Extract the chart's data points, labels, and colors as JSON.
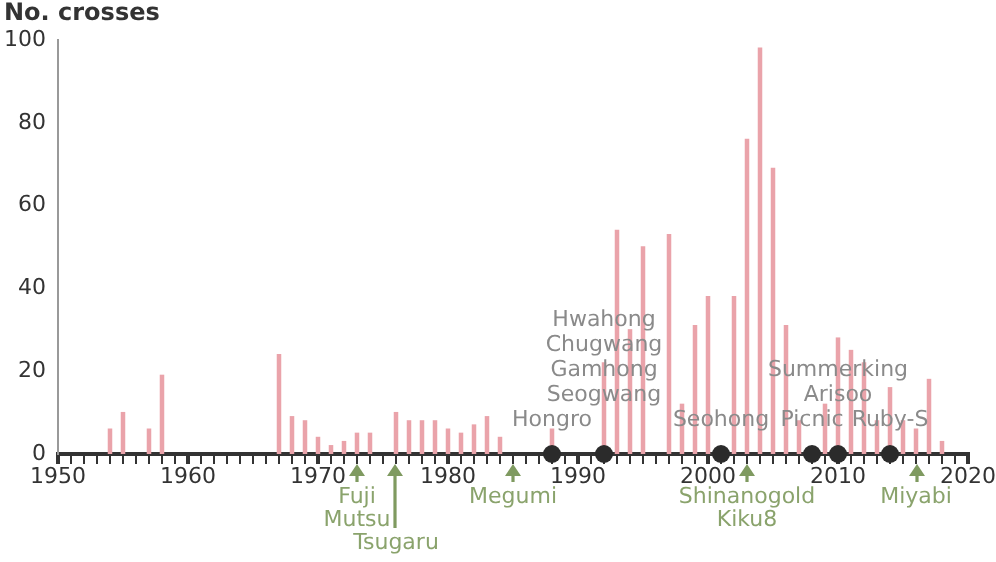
{
  "chart_data": {
    "type": "bar",
    "ylabel": "No. crosses",
    "categories": [
      "1950",
      null,
      null,
      null,
      null,
      null,
      null,
      null,
      null,
      null,
      "1960",
      null,
      null,
      null,
      null,
      null,
      null,
      null,
      null,
      null,
      "1970",
      null,
      null,
      null,
      null,
      null,
      null,
      null,
      null,
      null,
      "1980",
      null,
      null,
      null,
      null,
      null,
      null,
      null,
      null,
      null,
      "1990",
      null,
      null,
      null,
      null,
      null,
      null,
      null,
      null,
      null,
      "2000",
      null,
      null,
      null,
      null,
      null,
      null,
      null,
      null,
      null,
      "2010",
      null,
      null,
      null,
      null,
      null,
      null,
      null,
      null,
      null,
      "2020"
    ],
    "ylim": [
      0,
      100
    ],
    "yticks": [
      0,
      20,
      40,
      60,
      80,
      100
    ],
    "series": [
      {
        "color": "#eaa3aa",
        "values": [
          null,
          null,
          null,
          null,
          6,
          10,
          null,
          6,
          19,
          null,
          null,
          null,
          null,
          null,
          null,
          null,
          null,
          24,
          9,
          8,
          4,
          2,
          3,
          5,
          5,
          null,
          10,
          8,
          8,
          8,
          6,
          5,
          7,
          9,
          4,
          null,
          null,
          null,
          6,
          null,
          null,
          null,
          22,
          54,
          30,
          50,
          null,
          53,
          12,
          31,
          38,
          null,
          38,
          76,
          98,
          69,
          31,
          8,
          null,
          12,
          28,
          25,
          22,
          8,
          16,
          8,
          6,
          18,
          3,
          null,
          null
        ]
      },
      {
        "type": "scatter",
        "color": "#2b2b2b",
        "marker": "circle",
        "values": [
          null,
          null,
          null,
          null,
          null,
          null,
          null,
          null,
          null,
          null,
          null,
          null,
          null,
          null,
          null,
          null,
          null,
          null,
          null,
          null,
          null,
          null,
          null,
          null,
          null,
          null,
          null,
          null,
          null,
          null,
          null,
          null,
          null,
          null,
          null,
          null,
          null,
          null,
          0,
          null,
          null,
          null,
          0,
          null,
          null,
          null,
          null,
          null,
          null,
          null,
          null,
          0,
          null,
          null,
          null,
          null,
          null,
          null,
          0,
          null,
          0,
          null,
          null,
          null,
          0,
          null,
          null,
          null,
          null,
          null,
          null
        ]
      }
    ],
    "annotations": [
      "Hongro",
      "Hwahong\nChugwang\nGamhong\nSeogwang",
      "Seohong",
      "Picnic",
      "Summerking\nArisoo",
      "Ruby-S",
      "Fuji\nMutsu",
      "Tsugaru",
      "Megumi",
      "Shinanogold\nKiku8",
      "Miyabi"
    ]
  }
}
